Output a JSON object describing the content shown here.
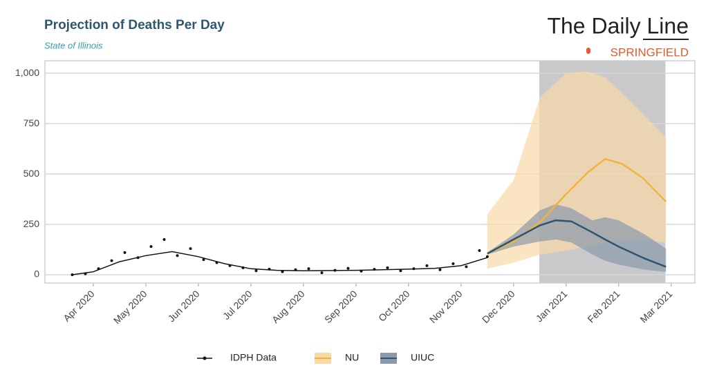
{
  "header": {
    "logo": "The Daily Line",
    "edition": "SPRINGFIELD"
  },
  "chart_data": {
    "type": "projection",
    "title": "Projection of Deaths Per Day",
    "subtitle": "State of Illinois",
    "xlim": [
      -0.92,
      11.45
    ],
    "xticks": [
      {
        "value": 0,
        "label": "Apr 2020"
      },
      {
        "value": 1,
        "label": "May 2020"
      },
      {
        "value": 2,
        "label": "Jun 2020"
      },
      {
        "value": 3,
        "label": "Jul 2020"
      },
      {
        "value": 4,
        "label": "Aug 2020"
      },
      {
        "value": 5,
        "label": "Sep 2020"
      },
      {
        "value": 6,
        "label": "Oct 2020"
      },
      {
        "value": 7,
        "label": "Nov 2020"
      },
      {
        "value": 8,
        "label": "Dec 2020"
      },
      {
        "value": 9,
        "label": "Jan 2021"
      },
      {
        "value": 10,
        "label": "Feb 2021"
      },
      {
        "value": 11,
        "label": "Mar 2021"
      }
    ],
    "ylim": [
      -41,
      1062
    ],
    "yticks": [
      0,
      250,
      500,
      750,
      {
        "value": 1000,
        "label": "1,000"
      }
    ],
    "grid": true,
    "shaded_xrange": [
      8.49,
      10.89
    ],
    "shade_color": "#c9c9cb",
    "legend": "bottom",
    "series": [
      {
        "name": "IDPH Data",
        "color": "#111111",
        "x": [
          -0.4,
          -0.15,
          0.1,
          0.35,
          0.6,
          0.85,
          1.1,
          1.35,
          1.6,
          1.85,
          2.1,
          2.35,
          2.6,
          2.85,
          3.1,
          3.35,
          3.6,
          3.85,
          4.1,
          4.35,
          4.6,
          4.85,
          5.1,
          5.35,
          5.6,
          5.85,
          6.1,
          6.35,
          6.6,
          6.85,
          7.1,
          7.35,
          7.5
        ],
        "values": [
          0,
          5,
          30,
          70,
          110,
          85,
          140,
          175,
          95,
          130,
          75,
          60,
          45,
          35,
          20,
          28,
          15,
          25,
          30,
          10,
          22,
          32,
          18,
          27,
          35,
          20,
          30,
          45,
          25,
          55,
          40,
          120,
          90
        ],
        "trend_x": [
          -0.4,
          0,
          0.5,
          1,
          1.5,
          2,
          2.5,
          3,
          3.5,
          4,
          5,
          6,
          6.5,
          7,
          7.5
        ],
        "trend": [
          0,
          15,
          65,
          95,
          115,
          90,
          55,
          30,
          22,
          20,
          22,
          28,
          32,
          45,
          85
        ]
      },
      {
        "name": "NU",
        "color": "#f0b43c",
        "band_color": "#f8d9a6",
        "x": [
          7.5,
          8,
          8.5,
          9,
          9.4,
          9.74,
          10.07,
          10.46,
          10.9
        ],
        "values": [
          105,
          165,
          260,
          400,
          505,
          575,
          550,
          480,
          363
        ],
        "lower": [
          30,
          60,
          100,
          120,
          140,
          155,
          170,
          170,
          160
        ],
        "upper": [
          300,
          470,
          880,
          1000,
          1010,
          980,
          900,
          800,
          680
        ]
      },
      {
        "name": "UIUC",
        "color": "#2f5470",
        "band_color": "#8a9aab",
        "x": [
          7.5,
          8,
          8.5,
          8.8,
          9.1,
          9.5,
          9.74,
          10,
          10.5,
          10.9
        ],
        "values": [
          105,
          175,
          245,
          270,
          265,
          210,
          175,
          140,
          80,
          40
        ],
        "lower": [
          100,
          140,
          165,
          175,
          160,
          100,
          70,
          50,
          25,
          15
        ],
        "upper": [
          110,
          200,
          320,
          350,
          330,
          270,
          285,
          270,
          200,
          130
        ]
      }
    ]
  }
}
